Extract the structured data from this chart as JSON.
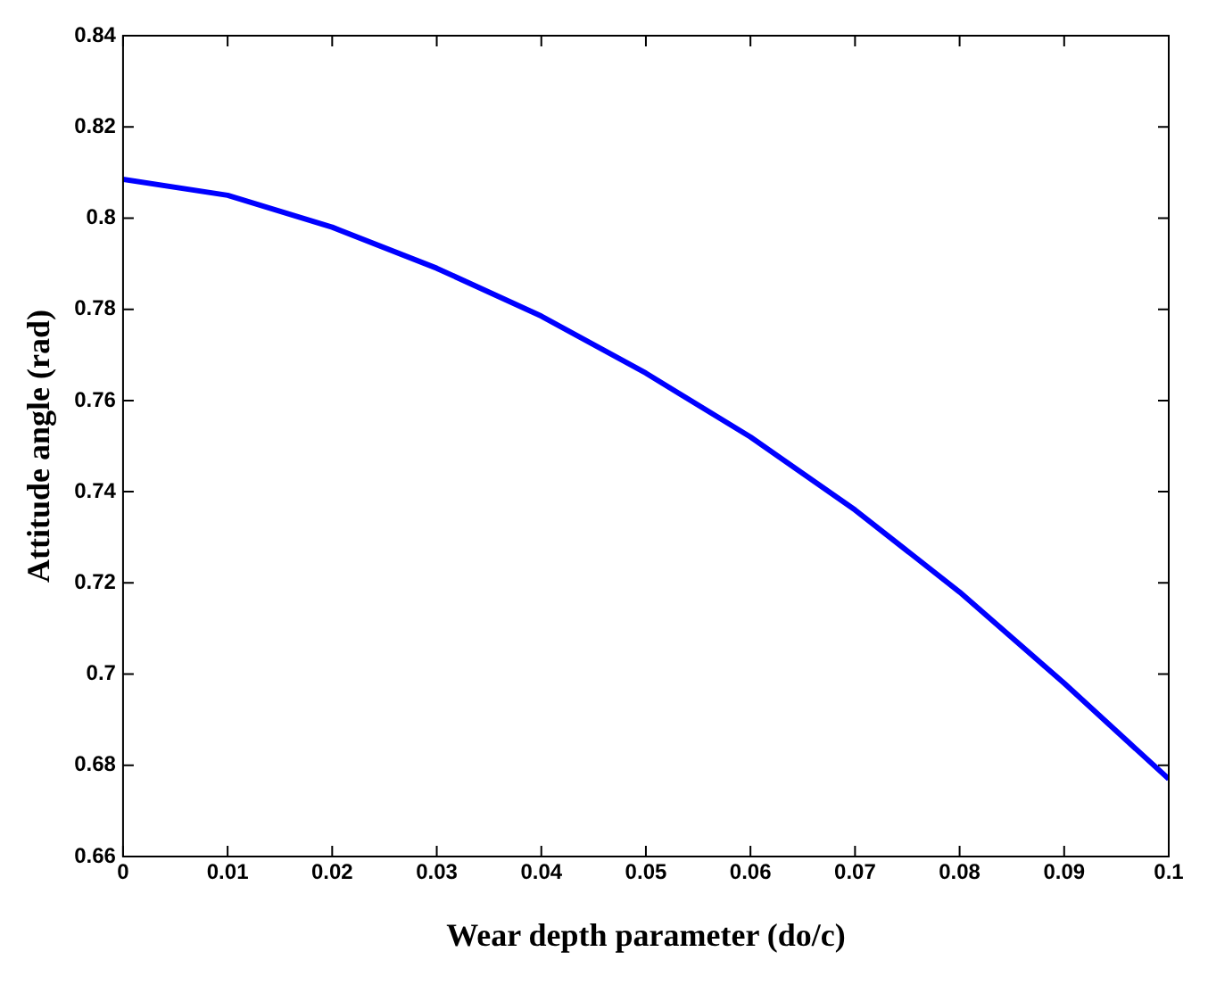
{
  "chart_data": {
    "type": "line",
    "xlabel": "Wear depth parameter (do/c)",
    "ylabel": "Attitude angle (rad)",
    "x": [
      0,
      0.01,
      0.02,
      0.03,
      0.04,
      0.05,
      0.06,
      0.07,
      0.08,
      0.09,
      0.1
    ],
    "series": [
      {
        "color": "#0000ff",
        "values": [
          0.8085,
          0.805,
          0.798,
          0.789,
          0.7785,
          0.766,
          0.752,
          0.736,
          0.718,
          0.698,
          0.677
        ]
      }
    ],
    "xlim": [
      0,
      0.1
    ],
    "xticks": [
      0,
      0.01,
      0.02,
      0.03,
      0.04,
      0.05,
      0.06,
      0.07,
      0.08,
      0.09,
      0.1
    ],
    "ylim": [
      0.66,
      0.84
    ],
    "yticks": [
      0.66,
      0.68,
      0.7,
      0.72,
      0.74,
      0.76,
      0.78,
      0.8,
      0.82,
      0.84
    ],
    "grid": false,
    "legend": false,
    "marker": "none",
    "line_style": "solid"
  }
}
